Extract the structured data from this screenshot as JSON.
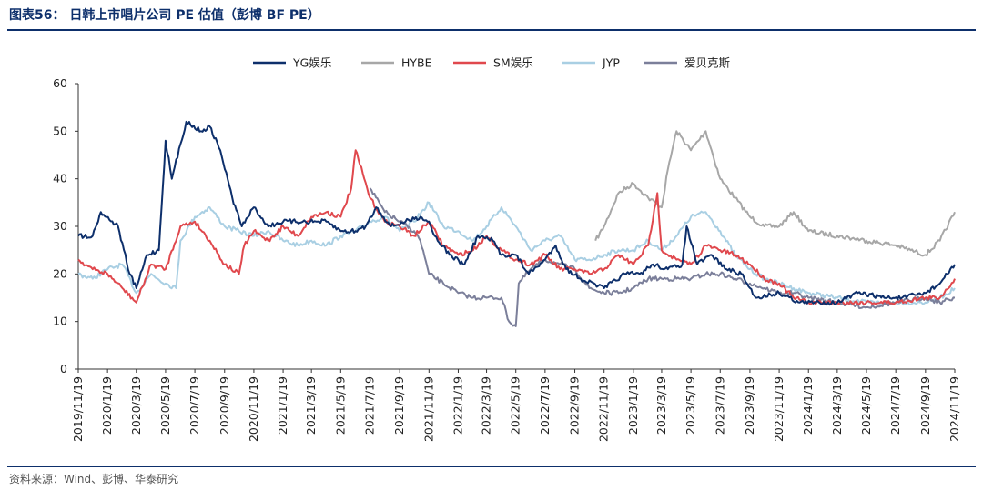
{
  "header": {
    "title": "图表56：   日韩上市唱片公司 PE 估值（彭博 BF PE）"
  },
  "footer": {
    "source": "资料来源：Wind、彭博、华泰研究"
  },
  "colors": {
    "accent": "#0d2f6b"
  },
  "chart_data": {
    "type": "line",
    "title": "",
    "xlabel": "",
    "ylabel": "",
    "ylim": [
      0,
      60
    ],
    "yticks": [
      0,
      10,
      20,
      30,
      40,
      50,
      60
    ],
    "legend_position": "top",
    "grid": false,
    "x_tick_labels": [
      "2019/11/19",
      "2020/1/19",
      "2020/3/19",
      "2020/5/19",
      "2020/7/19",
      "2020/9/19",
      "2020/11/19",
      "2021/1/19",
      "2021/3/19",
      "2021/5/19",
      "2021/7/19",
      "2021/9/19",
      "2021/11/19",
      "2022/1/19",
      "2022/3/19",
      "2022/5/19",
      "2022/7/19",
      "2022/9/19",
      "2022/11/19",
      "2023/1/19",
      "2023/3/19",
      "2023/5/19",
      "2023/7/19",
      "2023/9/19",
      "2023/11/19",
      "2024/1/19",
      "2024/3/19",
      "2024/5/19",
      "2024/7/19",
      "2024/9/19",
      "2024/11/19"
    ],
    "x_range": [
      "2019/11/19",
      "2024/11/19"
    ],
    "series": [
      {
        "name": "YG娱乐",
        "color": "#0d2f6b",
        "points": [
          [
            "2019/11/19",
            28
          ],
          [
            "2019/12/19",
            28
          ],
          [
            "2020/1/5",
            33
          ],
          [
            "2020/2/10",
            30
          ],
          [
            "2020/3/5",
            20
          ],
          [
            "2020/3/19",
            17
          ],
          [
            "2020/4/10",
            24
          ],
          [
            "2020/5/5",
            25
          ],
          [
            "2020/5/19",
            48
          ],
          [
            "2020/6/1",
            40
          ],
          [
            "2020/7/1",
            52
          ],
          [
            "2020/8/1",
            50
          ],
          [
            "2020/8/19",
            51
          ],
          [
            "2020/9/10",
            46
          ],
          [
            "2020/10/5",
            36
          ],
          [
            "2020/10/25",
            30
          ],
          [
            "2020/11/19",
            34
          ],
          [
            "2020/12/19",
            30
          ],
          [
            "2021/1/19",
            31
          ],
          [
            "2021/3/1",
            31
          ],
          [
            "2021/4/19",
            31
          ],
          [
            "2021/5/19",
            29
          ],
          [
            "2021/6/19",
            29
          ],
          [
            "2021/7/10",
            30
          ],
          [
            "2021/8/1",
            34
          ],
          [
            "2021/9/1",
            30
          ],
          [
            "2021/10/1",
            31
          ],
          [
            "2021/11/1",
            32
          ],
          [
            "2021/11/19",
            31
          ],
          [
            "2021/12/1",
            28
          ],
          [
            "2022/1/1",
            24
          ],
          [
            "2022/2/1",
            22
          ],
          [
            "2022/3/1",
            28
          ],
          [
            "2022/4/1",
            27
          ],
          [
            "2022/4/19",
            24
          ],
          [
            "2022/5/19",
            24
          ],
          [
            "2022/6/15",
            20
          ],
          [
            "2022/7/19",
            23
          ],
          [
            "2022/8/10",
            26
          ],
          [
            "2022/9/1",
            21
          ],
          [
            "2022/10/1",
            19
          ],
          [
            "2022/11/19",
            17
          ],
          [
            "2023/1/1",
            20
          ],
          [
            "2023/2/1",
            20
          ],
          [
            "2023/3/1",
            22
          ],
          [
            "2023/4/1",
            21
          ],
          [
            "2023/5/1",
            22
          ],
          [
            "2023/5/10",
            30
          ],
          [
            "2023/6/1",
            22
          ],
          [
            "2023/7/1",
            24
          ],
          [
            "2023/8/1",
            21
          ],
          [
            "2023/9/1",
            20
          ],
          [
            "2023/10/1",
            15
          ],
          [
            "2023/11/19",
            16
          ],
          [
            "2024/1/1",
            14
          ],
          [
            "2024/2/1",
            14
          ],
          [
            "2024/3/19",
            14
          ],
          [
            "2024/5/1",
            16
          ],
          [
            "2024/7/1",
            15
          ],
          [
            "2024/8/1",
            15
          ],
          [
            "2024/9/19",
            16
          ],
          [
            "2024/10/19",
            18
          ],
          [
            "2024/11/19",
            22
          ]
        ]
      },
      {
        "name": "HYBE",
        "color": "#a7a7a7",
        "points": [
          [
            "2022/11/1",
            27
          ],
          [
            "2022/11/19",
            30
          ],
          [
            "2022/12/19",
            37
          ],
          [
            "2023/1/19",
            39
          ],
          [
            "2023/2/19",
            36
          ],
          [
            "2023/3/19",
            34
          ],
          [
            "2023/4/1",
            42
          ],
          [
            "2023/4/19",
            50
          ],
          [
            "2023/5/19",
            46
          ],
          [
            "2023/6/19",
            50
          ],
          [
            "2023/7/19",
            40
          ],
          [
            "2023/8/19",
            36
          ],
          [
            "2023/9/19",
            32
          ],
          [
            "2023/10/19",
            30
          ],
          [
            "2023/11/19",
            30
          ],
          [
            "2023/12/19",
            33
          ],
          [
            "2024/1/19",
            29
          ],
          [
            "2024/3/19",
            28
          ],
          [
            "2024/5/19",
            27
          ],
          [
            "2024/7/19",
            26
          ],
          [
            "2024/8/19",
            25
          ],
          [
            "2024/9/19",
            24
          ],
          [
            "2024/10/19",
            27
          ],
          [
            "2024/11/19",
            33
          ]
        ]
      },
      {
        "name": "SM娱乐",
        "color": "#e0484d",
        "points": [
          [
            "2019/11/19",
            23
          ],
          [
            "2019/12/19",
            21
          ],
          [
            "2020/1/19",
            20
          ],
          [
            "2020/2/19",
            17
          ],
          [
            "2020/3/19",
            14
          ],
          [
            "2020/4/19",
            22
          ],
          [
            "2020/5/19",
            21
          ],
          [
            "2020/6/19",
            30
          ],
          [
            "2020/7/19",
            31
          ],
          [
            "2020/8/19",
            27
          ],
          [
            "2020/9/19",
            22
          ],
          [
            "2020/10/19",
            20
          ],
          [
            "2020/10/30",
            26
          ],
          [
            "2020/11/19",
            29
          ],
          [
            "2020/12/19",
            27
          ],
          [
            "2021/1/19",
            30
          ],
          [
            "2021/2/19",
            28
          ],
          [
            "2021/3/19",
            32
          ],
          [
            "2021/4/19",
            33
          ],
          [
            "2021/5/19",
            32
          ],
          [
            "2021/6/10",
            38
          ],
          [
            "2021/6/19",
            46
          ],
          [
            "2021/7/19",
            36
          ],
          [
            "2021/8/19",
            31
          ],
          [
            "2021/9/19",
            30
          ],
          [
            "2021/10/19",
            28
          ],
          [
            "2021/11/19",
            31
          ],
          [
            "2021/12/19",
            26
          ],
          [
            "2022/1/19",
            24
          ],
          [
            "2022/2/19",
            25
          ],
          [
            "2022/3/19",
            28
          ],
          [
            "2022/4/19",
            25
          ],
          [
            "2022/5/19",
            23
          ],
          [
            "2022/6/19",
            22
          ],
          [
            "2022/7/19",
            24
          ],
          [
            "2022/8/19",
            21
          ],
          [
            "2022/9/19",
            21
          ],
          [
            "2022/10/19",
            20
          ],
          [
            "2022/11/19",
            21
          ],
          [
            "2022/12/19",
            24
          ],
          [
            "2023/1/19",
            22
          ],
          [
            "2023/2/19",
            26
          ],
          [
            "2023/3/10",
            37
          ],
          [
            "2023/3/19",
            25
          ],
          [
            "2023/4/19",
            23
          ],
          [
            "2023/5/19",
            22
          ],
          [
            "2023/6/19",
            26
          ],
          [
            "2023/7/19",
            25
          ],
          [
            "2023/8/19",
            24
          ],
          [
            "2023/9/19",
            22
          ],
          [
            "2023/10/19",
            19
          ],
          [
            "2023/11/19",
            18
          ],
          [
            "2023/12/19",
            15
          ],
          [
            "2024/1/19",
            14
          ],
          [
            "2024/3/19",
            14
          ],
          [
            "2024/5/19",
            14
          ],
          [
            "2024/7/19",
            14
          ],
          [
            "2024/9/19",
            15
          ],
          [
            "2024/10/19",
            15
          ],
          [
            "2024/11/19",
            19
          ]
        ]
      },
      {
        "name": "JYP",
        "color": "#a9cfe3",
        "points": [
          [
            "2019/11/19",
            20
          ],
          [
            "2019/12/19",
            19
          ],
          [
            "2020/1/19",
            21
          ],
          [
            "2020/2/19",
            22
          ],
          [
            "2020/3/19",
            16
          ],
          [
            "2020/4/19",
            20
          ],
          [
            "2020/5/19",
            18
          ],
          [
            "2020/6/10",
            17
          ],
          [
            "2020/6/19",
            27
          ],
          [
            "2020/7/19",
            32
          ],
          [
            "2020/8/19",
            34
          ],
          [
            "2020/9/19",
            30
          ],
          [
            "2020/10/19",
            29
          ],
          [
            "2020/11/19",
            28
          ],
          [
            "2020/12/19",
            29
          ],
          [
            "2021/1/19",
            27
          ],
          [
            "2021/2/19",
            26
          ],
          [
            "2021/3/19",
            27
          ],
          [
            "2021/4/19",
            26
          ],
          [
            "2021/5/19",
            28
          ],
          [
            "2021/6/19",
            29
          ],
          [
            "2021/7/19",
            31
          ],
          [
            "2021/8/19",
            32
          ],
          [
            "2021/9/19",
            29
          ],
          [
            "2021/10/19",
            31
          ],
          [
            "2021/11/19",
            35
          ],
          [
            "2021/12/19",
            30
          ],
          [
            "2022/1/19",
            29
          ],
          [
            "2022/2/19",
            27
          ],
          [
            "2022/3/19",
            30
          ],
          [
            "2022/4/19",
            34
          ],
          [
            "2022/5/19",
            30
          ],
          [
            "2022/6/19",
            25
          ],
          [
            "2022/7/19",
            27
          ],
          [
            "2022/8/19",
            28
          ],
          [
            "2022/9/19",
            23
          ],
          [
            "2022/10/19",
            23
          ],
          [
            "2022/11/19",
            24
          ],
          [
            "2022/12/19",
            25
          ],
          [
            "2023/1/19",
            25
          ],
          [
            "2023/2/19",
            27
          ],
          [
            "2023/3/19",
            25
          ],
          [
            "2023/4/19",
            28
          ],
          [
            "2023/5/19",
            32
          ],
          [
            "2023/6/19",
            33
          ],
          [
            "2023/7/19",
            29
          ],
          [
            "2023/8/19",
            24
          ],
          [
            "2023/9/19",
            21
          ],
          [
            "2023/10/19",
            19
          ],
          [
            "2023/11/19",
            18
          ],
          [
            "2023/12/19",
            17
          ],
          [
            "2024/1/19",
            16
          ],
          [
            "2024/3/19",
            15
          ],
          [
            "2024/5/19",
            14
          ],
          [
            "2024/7/19",
            14
          ],
          [
            "2024/9/19",
            14
          ],
          [
            "2024/10/19",
            15
          ],
          [
            "2024/11/19",
            17
          ]
        ]
      },
      {
        "name": "爱贝克斯",
        "color": "#7b7f9a",
        "points": [
          [
            "2021/7/19",
            38
          ],
          [
            "2021/8/19",
            33
          ],
          [
            "2021/9/19",
            31
          ],
          [
            "2021/10/19",
            29
          ],
          [
            "2021/11/1",
            27
          ],
          [
            "2021/11/19",
            20
          ],
          [
            "2021/12/19",
            18
          ],
          [
            "2022/1/19",
            16
          ],
          [
            "2022/2/19",
            15
          ],
          [
            "2022/3/19",
            15
          ],
          [
            "2022/4/19",
            15
          ],
          [
            "2022/5/5",
            10
          ],
          [
            "2022/5/19",
            9
          ],
          [
            "2022/5/25",
            18
          ],
          [
            "2022/6/19",
            21
          ],
          [
            "2022/7/19",
            23
          ],
          [
            "2022/8/19",
            22
          ],
          [
            "2022/9/19",
            21
          ],
          [
            "2022/10/19",
            17
          ],
          [
            "2022/11/19",
            16
          ],
          [
            "2022/12/19",
            16
          ],
          [
            "2023/1/19",
            17
          ],
          [
            "2023/2/19",
            19
          ],
          [
            "2023/3/19",
            19
          ],
          [
            "2023/4/19",
            19
          ],
          [
            "2023/5/19",
            19
          ],
          [
            "2023/6/19",
            20
          ],
          [
            "2023/7/19",
            20
          ],
          [
            "2023/8/19",
            19
          ],
          [
            "2023/9/19",
            18
          ],
          [
            "2023/10/19",
            17
          ],
          [
            "2023/11/19",
            16
          ],
          [
            "2023/12/19",
            16
          ],
          [
            "2024/1/19",
            15
          ],
          [
            "2024/3/19",
            14
          ],
          [
            "2024/5/19",
            13
          ],
          [
            "2024/7/19",
            14
          ],
          [
            "2024/9/19",
            15
          ],
          [
            "2024/10/19",
            14
          ],
          [
            "2024/11/19",
            15
          ]
        ]
      }
    ]
  }
}
